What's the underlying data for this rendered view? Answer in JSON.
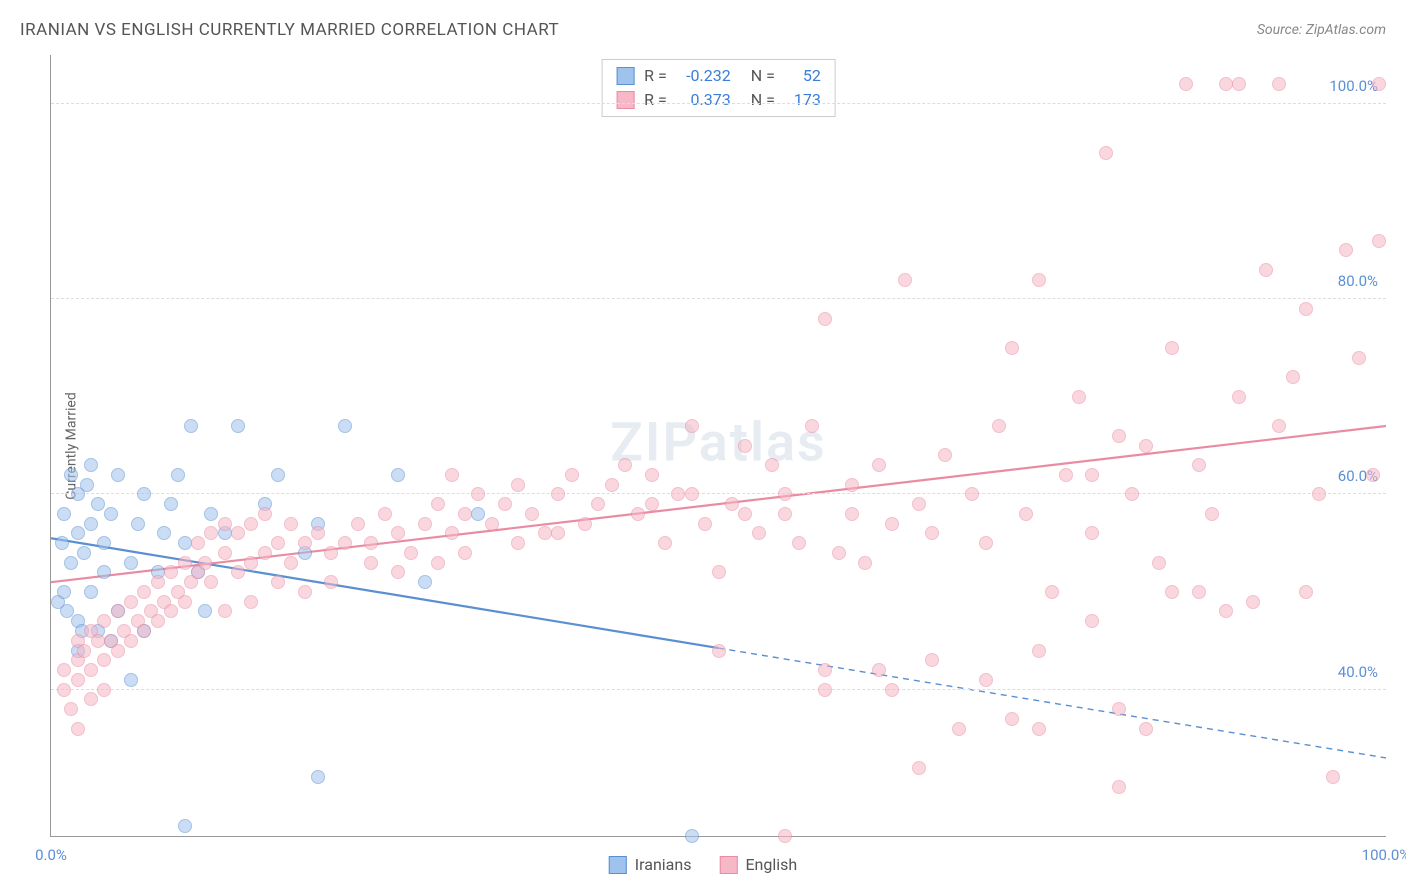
{
  "title": "IRANIAN VS ENGLISH CURRENTLY MARRIED CORRELATION CHART",
  "source_label": "Source:",
  "source_name": "ZipAtlas.com",
  "watermark": "ZIPatlas",
  "yaxis_label": "Currently Married",
  "chart": {
    "type": "scatter",
    "xlim": [
      0,
      100
    ],
    "ylim": [
      25,
      105
    ],
    "background_color": "#ffffff",
    "grid_color": "#dddddd",
    "axis_color": "#999999",
    "ytick_color": "#5b8fd6",
    "xtick_color": "#5b8fd6",
    "yticks": [
      40,
      60,
      80,
      100
    ],
    "ytick_labels": [
      "40.0%",
      "60.0%",
      "80.0%",
      "100.0%"
    ],
    "xticks": [
      0,
      100
    ],
    "xtick_labels": [
      "0.0%",
      "100.0%"
    ],
    "tick_fontsize": 15,
    "marker_size": 14,
    "marker_opacity": 0.55,
    "line_width": 2.2,
    "series": [
      {
        "id": "iranians",
        "label": "Iranians",
        "color_fill": "#9fc3ec",
        "color_stroke": "#5a8fd1",
        "r_value": "-0.232",
        "n_value": "52",
        "trend": {
          "start": [
            0,
            55.5
          ],
          "end": [
            100,
            33
          ],
          "solid_until_x": 50
        },
        "points": [
          [
            0.5,
            49
          ],
          [
            0.8,
            55
          ],
          [
            1,
            50
          ],
          [
            1,
            58
          ],
          [
            1.2,
            48
          ],
          [
            1.5,
            53
          ],
          [
            1.5,
            62
          ],
          [
            2,
            47
          ],
          [
            2,
            56
          ],
          [
            2,
            60
          ],
          [
            2.3,
            46
          ],
          [
            2.5,
            54
          ],
          [
            2.7,
            61
          ],
          [
            3,
            50
          ],
          [
            3,
            57
          ],
          [
            3,
            63
          ],
          [
            3.5,
            46
          ],
          [
            3.5,
            59
          ],
          [
            4,
            52
          ],
          [
            4,
            55
          ],
          [
            4.5,
            45
          ],
          [
            4.5,
            58
          ],
          [
            5,
            48
          ],
          [
            5,
            62
          ],
          [
            6,
            41
          ],
          [
            6,
            53
          ],
          [
            6.5,
            57
          ],
          [
            7,
            60
          ],
          [
            7,
            46
          ],
          [
            8,
            52
          ],
          [
            8.5,
            56
          ],
          [
            9,
            59
          ],
          [
            9.5,
            62
          ],
          [
            10,
            55
          ],
          [
            10.5,
            67
          ],
          [
            11,
            52
          ],
          [
            11.5,
            48
          ],
          [
            12,
            58
          ],
          [
            13,
            56
          ],
          [
            14,
            67
          ],
          [
            16,
            59
          ],
          [
            17,
            62
          ],
          [
            19,
            54
          ],
          [
            20,
            57
          ],
          [
            22,
            67
          ],
          [
            26,
            62
          ],
          [
            28,
            51
          ],
          [
            32,
            58
          ],
          [
            10,
            26
          ],
          [
            20,
            31
          ],
          [
            48,
            25
          ],
          [
            2,
            44
          ]
        ]
      },
      {
        "id": "english",
        "label": "English",
        "color_fill": "#f6b8c6",
        "color_stroke": "#e98ca3",
        "r_value": "0.373",
        "n_value": "173",
        "trend": {
          "start": [
            0,
            51
          ],
          "end": [
            100,
            67
          ],
          "solid_until_x": 100
        },
        "points": [
          [
            1,
            40
          ],
          [
            1,
            42
          ],
          [
            1.5,
            38
          ],
          [
            2,
            43
          ],
          [
            2,
            45
          ],
          [
            2.5,
            44
          ],
          [
            3,
            42
          ],
          [
            3,
            46
          ],
          [
            3.5,
            45
          ],
          [
            4,
            43
          ],
          [
            4,
            47
          ],
          [
            4.5,
            45
          ],
          [
            5,
            44
          ],
          [
            5,
            48
          ],
          [
            5.5,
            46
          ],
          [
            6,
            45
          ],
          [
            6,
            49
          ],
          [
            6.5,
            47
          ],
          [
            7,
            46
          ],
          [
            7,
            50
          ],
          [
            7.5,
            48
          ],
          [
            8,
            47
          ],
          [
            8,
            51
          ],
          [
            8.5,
            49
          ],
          [
            9,
            48
          ],
          [
            9,
            52
          ],
          [
            9.5,
            50
          ],
          [
            10,
            49
          ],
          [
            10,
            53
          ],
          [
            10.5,
            51
          ],
          [
            11,
            52
          ],
          [
            11,
            55
          ],
          [
            11.5,
            53
          ],
          [
            12,
            51
          ],
          [
            12,
            56
          ],
          [
            13,
            54
          ],
          [
            13,
            57
          ],
          [
            14,
            52
          ],
          [
            14,
            56
          ],
          [
            15,
            53
          ],
          [
            15,
            57
          ],
          [
            16,
            54
          ],
          [
            16,
            58
          ],
          [
            17,
            55
          ],
          [
            18,
            53
          ],
          [
            18,
            57
          ],
          [
            19,
            55
          ],
          [
            20,
            56
          ],
          [
            21,
            54
          ],
          [
            22,
            55
          ],
          [
            23,
            57
          ],
          [
            24,
            55
          ],
          [
            25,
            58
          ],
          [
            26,
            56
          ],
          [
            27,
            54
          ],
          [
            28,
            57
          ],
          [
            29,
            59
          ],
          [
            30,
            56
          ],
          [
            30,
            62
          ],
          [
            31,
            58
          ],
          [
            32,
            60
          ],
          [
            33,
            57
          ],
          [
            34,
            59
          ],
          [
            35,
            61
          ],
          [
            36,
            58
          ],
          [
            37,
            56
          ],
          [
            38,
            60
          ],
          [
            39,
            62
          ],
          [
            40,
            57
          ],
          [
            41,
            59
          ],
          [
            42,
            61
          ],
          [
            43,
            63
          ],
          [
            44,
            58
          ],
          [
            45,
            62
          ],
          [
            46,
            55
          ],
          [
            47,
            60
          ],
          [
            48,
            67
          ],
          [
            49,
            57
          ],
          [
            50,
            52
          ],
          [
            50,
            44
          ],
          [
            51,
            59
          ],
          [
            52,
            65
          ],
          [
            53,
            56
          ],
          [
            54,
            63
          ],
          [
            55,
            58
          ],
          [
            56,
            55
          ],
          [
            57,
            67
          ],
          [
            58,
            78
          ],
          [
            59,
            54
          ],
          [
            60,
            61
          ],
          [
            61,
            53
          ],
          [
            62,
            63
          ],
          [
            63,
            57
          ],
          [
            64,
            82
          ],
          [
            65,
            59
          ],
          [
            66,
            56
          ],
          [
            67,
            64
          ],
          [
            68,
            36
          ],
          [
            69,
            60
          ],
          [
            70,
            55
          ],
          [
            71,
            67
          ],
          [
            72,
            75
          ],
          [
            73,
            58
          ],
          [
            74,
            82
          ],
          [
            75,
            50
          ],
          [
            76,
            62
          ],
          [
            77,
            70
          ],
          [
            78,
            56
          ],
          [
            79,
            95
          ],
          [
            80,
            38
          ],
          [
            81,
            60
          ],
          [
            82,
            65
          ],
          [
            83,
            53
          ],
          [
            84,
            75
          ],
          [
            85,
            102
          ],
          [
            86,
            63
          ],
          [
            87,
            58
          ],
          [
            88,
            102
          ],
          [
            89,
            70
          ],
          [
            90,
            49
          ],
          [
            91,
            83
          ],
          [
            92,
            67
          ],
          [
            93,
            72
          ],
          [
            94,
            79
          ],
          [
            95,
            60
          ],
          [
            96,
            31
          ],
          [
            97,
            85
          ],
          [
            98,
            74
          ],
          [
            99,
            62
          ],
          [
            99.5,
            102
          ],
          [
            99.5,
            86
          ],
          [
            58,
            40
          ],
          [
            62,
            42
          ],
          [
            66,
            43
          ],
          [
            70,
            41
          ],
          [
            74,
            44
          ],
          [
            78,
            47
          ],
          [
            82,
            36
          ],
          [
            86,
            50
          ],
          [
            55,
            25
          ],
          [
            65,
            32
          ],
          [
            72,
            37
          ],
          [
            80,
            30
          ],
          [
            2,
            36
          ],
          [
            3,
            39
          ],
          [
            4,
            40
          ],
          [
            58,
            42
          ],
          [
            63,
            40
          ],
          [
            74,
            36
          ],
          [
            89,
            102
          ],
          [
            92,
            102
          ],
          [
            84,
            50
          ],
          [
            88,
            48
          ],
          [
            94,
            50
          ],
          [
            45,
            59
          ],
          [
            48,
            60
          ],
          [
            52,
            58
          ],
          [
            55,
            60
          ],
          [
            60,
            58
          ],
          [
            35,
            55
          ],
          [
            38,
            56
          ],
          [
            31,
            54
          ],
          [
            29,
            53
          ],
          [
            26,
            52
          ],
          [
            24,
            53
          ],
          [
            21,
            51
          ],
          [
            19,
            50
          ],
          [
            17,
            51
          ],
          [
            15,
            49
          ],
          [
            13,
            48
          ],
          [
            78,
            62
          ],
          [
            80,
            66
          ],
          [
            2,
            41
          ]
        ]
      }
    ]
  },
  "legend_stats_color": "#3b7dd8",
  "legend_label_color": "#555555"
}
